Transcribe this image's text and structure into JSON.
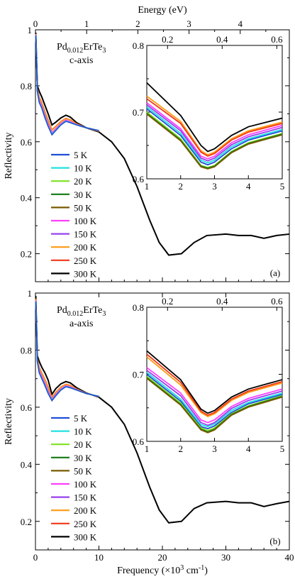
{
  "top_axis": {
    "label": "Energy (eV)",
    "ticks": [
      "0",
      "1",
      "2",
      "3",
      "4"
    ],
    "range": [
      0,
      4.959
    ]
  },
  "bottom_axis": {
    "label_main": "Frequency (×10",
    "label_sup": "3",
    "label_end": " cm",
    "label_sup2": "-1",
    "label_close": ")",
    "ticks": [
      "0",
      "10",
      "20",
      "30",
      "40"
    ]
  },
  "legend": [
    "5 K",
    "10 K",
    "20 K",
    "30 K",
    "50 K",
    "100 K",
    "150 K",
    "200 K",
    "250 K",
    "300 K"
  ],
  "colors": [
    "#1f4fd6",
    "#22e0e0",
    "#7fe020",
    "#127a12",
    "#7a5a00",
    "#ff40ff",
    "#9a40ee",
    "#ff9a10",
    "#f03818",
    "#000000"
  ],
  "panels": [
    {
      "id": "a",
      "label_prefix": "Pd",
      "label_sub": "0.012",
      "label_mid": "ErTe",
      "label_sub2": "3",
      "axis_label": "c-axis",
      "panel_letter": "(a)",
      "ylabel": "Reflectivity",
      "ytick_labels": [
        "1",
        "0.8",
        "0.6",
        "0.4",
        "0.2"
      ]
    },
    {
      "id": "b",
      "label_prefix": "Pd",
      "label_sub": "0.012",
      "label_mid": "ErTe",
      "label_sub2": "3",
      "axis_label": "a-axis",
      "panel_letter": "(b)",
      "ylabel": "Reflectivity",
      "ytick_labels": [
        "1",
        "0.8",
        "0.6",
        "0.4",
        "0.2"
      ]
    }
  ],
  "inset": {
    "xtick_labels": [
      "1",
      "2",
      "3",
      "4",
      "5"
    ],
    "ytick_labels": [
      "0.8",
      "0.7",
      "0.6"
    ],
    "top_tick_labels": [
      "0.2",
      "0.4",
      "0.6"
    ]
  },
  "chart_data": [
    {
      "type": "line",
      "panel": "a",
      "title": "",
      "xlabel": "Frequency (×10^3 cm^-1)",
      "ylabel": "Reflectivity",
      "xlim": [
        0,
        40
      ],
      "ylim": [
        0.1,
        1.0
      ],
      "top_xlabel": "Energy (eV)",
      "series": [
        {
          "name": "5 K",
          "x": [
            0.05,
            0.3,
            0.6,
            1.0,
            1.5,
            2.0,
            2.6,
            3.2,
            4.0,
            4.8,
            5.5,
            6.5,
            8.0,
            10.0
          ],
          "y": [
            0.98,
            0.78,
            0.74,
            0.72,
            0.685,
            0.655,
            0.625,
            0.64,
            0.66,
            0.673,
            0.668,
            0.66,
            0.65,
            0.64
          ]
        },
        {
          "name": "10 K",
          "x": [
            0.05,
            0.3,
            0.6,
            1.0,
            1.5,
            2.0,
            2.6,
            3.2,
            4.0,
            4.8,
            5.5,
            6.5,
            8.0,
            10.0
          ],
          "y": [
            0.98,
            0.78,
            0.742,
            0.722,
            0.688,
            0.658,
            0.628,
            0.643,
            0.662,
            0.675,
            0.67,
            0.662,
            0.651,
            0.641
          ]
        },
        {
          "name": "300 K",
          "x": [
            0.05,
            0.3,
            0.6,
            1.0,
            1.5,
            2.0,
            2.6,
            3.2,
            4.0,
            4.8,
            5.5,
            6.5,
            8.0,
            10,
            12,
            14,
            16,
            18,
            19.5,
            21,
            23,
            25,
            27,
            30,
            32,
            34,
            36,
            38,
            40
          ],
          "y": [
            0.99,
            0.8,
            0.78,
            0.76,
            0.73,
            0.7,
            0.66,
            0.67,
            0.685,
            0.695,
            0.688,
            0.668,
            0.65,
            0.635,
            0.6,
            0.54,
            0.44,
            0.32,
            0.24,
            0.195,
            0.2,
            0.24,
            0.265,
            0.27,
            0.265,
            0.265,
            0.255,
            0.265,
            0.27
          ]
        }
      ],
      "inset": {
        "xlim": [
          1,
          5
        ],
        "ylim": [
          0.6,
          0.8
        ],
        "series": [
          {
            "name": "5 K",
            "x": [
              1,
              2,
              2.6,
              2.8,
              3.0,
              3.5,
              4,
              5
            ],
            "y": [
              0.705,
              0.665,
              0.625,
              0.621,
              0.625,
              0.645,
              0.658,
              0.672
            ]
          },
          {
            "name": "10 K",
            "x": [
              1,
              2,
              2.6,
              2.8,
              3.0,
              3.5,
              4,
              5
            ],
            "y": [
              0.708,
              0.668,
              0.628,
              0.624,
              0.628,
              0.648,
              0.66,
              0.674
            ]
          },
          {
            "name": "20 K",
            "x": [
              1,
              2,
              2.6,
              2.8,
              3.0,
              3.5,
              4,
              5
            ],
            "y": [
              0.7,
              0.66,
              0.62,
              0.617,
              0.62,
              0.641,
              0.654,
              0.668
            ]
          },
          {
            "name": "30 K",
            "x": [
              1,
              2,
              2.6,
              2.8,
              3.0,
              3.5,
              4,
              5
            ],
            "y": [
              0.698,
              0.658,
              0.619,
              0.616,
              0.619,
              0.64,
              0.653,
              0.667
            ]
          },
          {
            "name": "50 K",
            "x": [
              1,
              2,
              2.6,
              2.8,
              3.0,
              3.5,
              4,
              5
            ],
            "y": [
              0.697,
              0.657,
              0.618,
              0.615,
              0.618,
              0.639,
              0.652,
              0.666
            ]
          },
          {
            "name": "100 K",
            "x": [
              1,
              2,
              2.6,
              2.8,
              3.0,
              3.5,
              4,
              5
            ],
            "y": [
              0.714,
              0.675,
              0.634,
              0.63,
              0.634,
              0.654,
              0.666,
              0.68
            ]
          },
          {
            "name": "150 K",
            "x": [
              1,
              2,
              2.6,
              2.8,
              3.0,
              3.5,
              4,
              5
            ],
            "y": [
              0.711,
              0.672,
              0.631,
              0.627,
              0.631,
              0.651,
              0.663,
              0.677
            ]
          },
          {
            "name": "200 K",
            "x": [
              1,
              2,
              2.6,
              2.8,
              3.0,
              3.5,
              4,
              5
            ],
            "y": [
              0.724,
              0.686,
              0.642,
              0.636,
              0.64,
              0.66,
              0.672,
              0.685
            ]
          },
          {
            "name": "250 K",
            "x": [
              1,
              2,
              2.6,
              2.8,
              3.0,
              3.5,
              4,
              5
            ],
            "y": [
              0.72,
              0.683,
              0.64,
              0.634,
              0.638,
              0.658,
              0.67,
              0.683
            ]
          },
          {
            "name": "300 K",
            "x": [
              1,
              2,
              2.6,
              2.8,
              3.0,
              3.5,
              4,
              5
            ],
            "y": [
              0.744,
              0.695,
              0.65,
              0.641,
              0.645,
              0.665,
              0.678,
              0.691
            ]
          }
        ]
      }
    },
    {
      "type": "line",
      "panel": "b",
      "title": "",
      "xlabel": "Frequency (×10^3 cm^-1)",
      "ylabel": "Reflectivity",
      "xlim": [
        0,
        40
      ],
      "ylim": [
        0.1,
        1.0
      ],
      "series": [
        {
          "name": "5 K",
          "x": [
            0.05,
            0.3,
            0.6,
            1.0,
            1.5,
            2.0,
            2.6,
            3.2,
            4.0,
            4.8,
            5.5,
            6.5,
            8.0,
            10.0
          ],
          "y": [
            0.97,
            0.76,
            0.72,
            0.7,
            0.675,
            0.648,
            0.623,
            0.64,
            0.66,
            0.672,
            0.668,
            0.66,
            0.648,
            0.638
          ]
        },
        {
          "name": "300 K",
          "x": [
            0.05,
            0.3,
            0.6,
            1.0,
            1.5,
            2.0,
            2.6,
            3.2,
            4.0,
            4.8,
            5.5,
            6.5,
            8.0,
            10,
            12,
            14,
            16,
            18,
            19.5,
            21,
            23,
            25,
            27,
            30,
            32,
            34,
            36,
            38,
            40
          ],
          "y": [
            0.99,
            0.78,
            0.76,
            0.74,
            0.72,
            0.695,
            0.645,
            0.665,
            0.682,
            0.69,
            0.685,
            0.668,
            0.65,
            0.635,
            0.6,
            0.54,
            0.44,
            0.32,
            0.24,
            0.195,
            0.2,
            0.245,
            0.265,
            0.27,
            0.265,
            0.265,
            0.252,
            0.262,
            0.27
          ]
        }
      ],
      "inset": {
        "xlim": [
          1,
          5
        ],
        "ylim": [
          0.6,
          0.8
        ],
        "series": [
          {
            "name": "5 K",
            "x": [
              1,
              2,
              2.6,
              2.8,
              3.0,
              3.5,
              4,
              5
            ],
            "y": [
              0.7,
              0.66,
              0.622,
              0.619,
              0.623,
              0.643,
              0.656,
              0.67
            ]
          },
          {
            "name": "10 K",
            "x": [
              1,
              2,
              2.6,
              2.8,
              3.0,
              3.5,
              4,
              5
            ],
            "y": [
              0.703,
              0.663,
              0.625,
              0.622,
              0.626,
              0.646,
              0.658,
              0.672
            ]
          },
          {
            "name": "20 K",
            "x": [
              1,
              2,
              2.6,
              2.8,
              3.0,
              3.5,
              4,
              5
            ],
            "y": [
              0.697,
              0.657,
              0.62,
              0.616,
              0.62,
              0.641,
              0.653,
              0.668
            ]
          },
          {
            "name": "30 K",
            "x": [
              1,
              2,
              2.6,
              2.8,
              3.0,
              3.5,
              4,
              5
            ],
            "y": [
              0.695,
              0.655,
              0.618,
              0.614,
              0.618,
              0.64,
              0.652,
              0.667
            ]
          },
          {
            "name": "50 K",
            "x": [
              1,
              2,
              2.6,
              2.8,
              3.0,
              3.5,
              4,
              5
            ],
            "y": [
              0.694,
              0.654,
              0.617,
              0.613,
              0.617,
              0.639,
              0.651,
              0.666
            ]
          },
          {
            "name": "100 K",
            "x": [
              1,
              2,
              2.6,
              2.8,
              3.0,
              3.5,
              4,
              5
            ],
            "y": [
              0.71,
              0.672,
              0.632,
              0.628,
              0.632,
              0.652,
              0.664,
              0.678
            ]
          },
          {
            "name": "150 K",
            "x": [
              1,
              2,
              2.6,
              2.8,
              3.0,
              3.5,
              4,
              5
            ],
            "y": [
              0.706,
              0.668,
              0.628,
              0.624,
              0.628,
              0.649,
              0.661,
              0.675
            ]
          },
          {
            "name": "200 K",
            "x": [
              1,
              2,
              2.6,
              2.8,
              3.0,
              3.5,
              4,
              5
            ],
            "y": [
              0.726,
              0.684,
              0.643,
              0.637,
              0.641,
              0.661,
              0.673,
              0.687
            ]
          },
          {
            "name": "250 K",
            "x": [
              1,
              2,
              2.6,
              2.8,
              3.0,
              3.5,
              4,
              5
            ],
            "y": [
              0.73,
              0.688,
              0.645,
              0.639,
              0.643,
              0.663,
              0.675,
              0.689
            ]
          },
          {
            "name": "300 K",
            "x": [
              1,
              2,
              2.6,
              2.8,
              3.0,
              3.5,
              4,
              5
            ],
            "y": [
              0.735,
              0.692,
              0.648,
              0.642,
              0.646,
              0.666,
              0.678,
              0.692
            ]
          }
        ]
      }
    }
  ]
}
